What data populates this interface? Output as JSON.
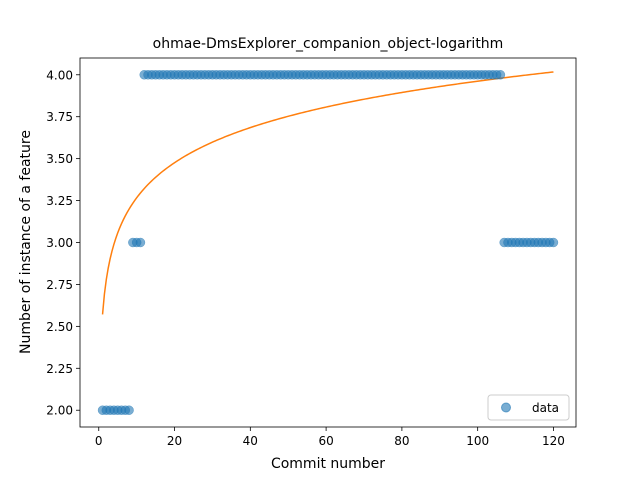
{
  "chart_data": {
    "type": "scatter",
    "title": "ohmae-DmsExplorer_companion_object-logarithm",
    "xlabel": "Commit number",
    "ylabel": "Number of instance of a feature",
    "xlim": [
      -4.95,
      125.95
    ],
    "ylim": [
      1.9,
      4.1
    ],
    "xticks": [
      0,
      20,
      40,
      60,
      80,
      100,
      120
    ],
    "xtick_labels": [
      "0",
      "20",
      "40",
      "60",
      "80",
      "100",
      "120"
    ],
    "yticks": [
      2.0,
      2.25,
      2.5,
      2.75,
      3.0,
      3.25,
      3.5,
      3.75,
      4.0
    ],
    "ytick_labels": [
      "2.00",
      "2.25",
      "2.50",
      "2.75",
      "3.00",
      "3.25",
      "3.50",
      "3.75",
      "4.00"
    ],
    "grid": false,
    "legend": {
      "position": "lower-right",
      "entries": [
        "data"
      ]
    },
    "colors": {
      "data": "#1f77b4",
      "fit": "#ff7f0e"
    },
    "series": [
      {
        "name": "data",
        "kind": "scatter",
        "segments": [
          {
            "x_start": 1,
            "x_end": 8,
            "y": 2
          },
          {
            "x_start": 9,
            "x_end": 11,
            "y": 3
          },
          {
            "x_start": 12,
            "x_end": 106,
            "y": 4
          },
          {
            "x_start": 107,
            "x_end": 120,
            "y": 3
          }
        ]
      },
      {
        "kind": "line",
        "model": "logarithmic",
        "a": 2.571,
        "b": 0.302,
        "x_range": [
          1,
          120
        ]
      }
    ]
  }
}
